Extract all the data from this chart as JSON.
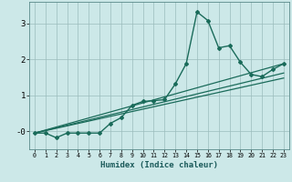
{
  "xlabel": "Humidex (Indice chaleur)",
  "bg_color": "#cce8e8",
  "grid_color": "#9bbcbc",
  "line_color": "#1a6b5a",
  "xlim": [
    -0.5,
    23.5
  ],
  "ylim": [
    -0.5,
    3.6
  ],
  "yticks": [
    0,
    1,
    2,
    3
  ],
  "ytick_labels": [
    "-0",
    "1",
    "2",
    "3"
  ],
  "xtick_labels": [
    "0",
    "1",
    "2",
    "3",
    "4",
    "5",
    "6",
    "7",
    "8",
    "9",
    "10",
    "11",
    "12",
    "13",
    "14",
    "15",
    "16",
    "17",
    "18",
    "19",
    "20",
    "21",
    "22",
    "23"
  ],
  "series1_x": [
    0,
    1,
    2,
    3,
    4,
    5,
    6,
    7,
    8,
    9,
    10,
    11,
    12,
    13,
    14,
    15,
    16,
    17,
    18,
    19,
    20,
    21,
    22,
    23
  ],
  "series1_y": [
    -0.05,
    -0.05,
    -0.18,
    -0.05,
    -0.05,
    -0.05,
    -0.05,
    0.22,
    0.38,
    0.72,
    0.83,
    0.85,
    0.88,
    1.32,
    1.88,
    3.32,
    3.08,
    2.32,
    2.38,
    1.92,
    1.58,
    1.52,
    1.72,
    1.88
  ],
  "series2_x": [
    0,
    23
  ],
  "series2_y": [
    -0.05,
    1.88
  ],
  "series3_x": [
    0,
    23
  ],
  "series3_y": [
    -0.05,
    1.62
  ],
  "series4_x": [
    0,
    23
  ],
  "series4_y": [
    -0.05,
    1.48
  ]
}
